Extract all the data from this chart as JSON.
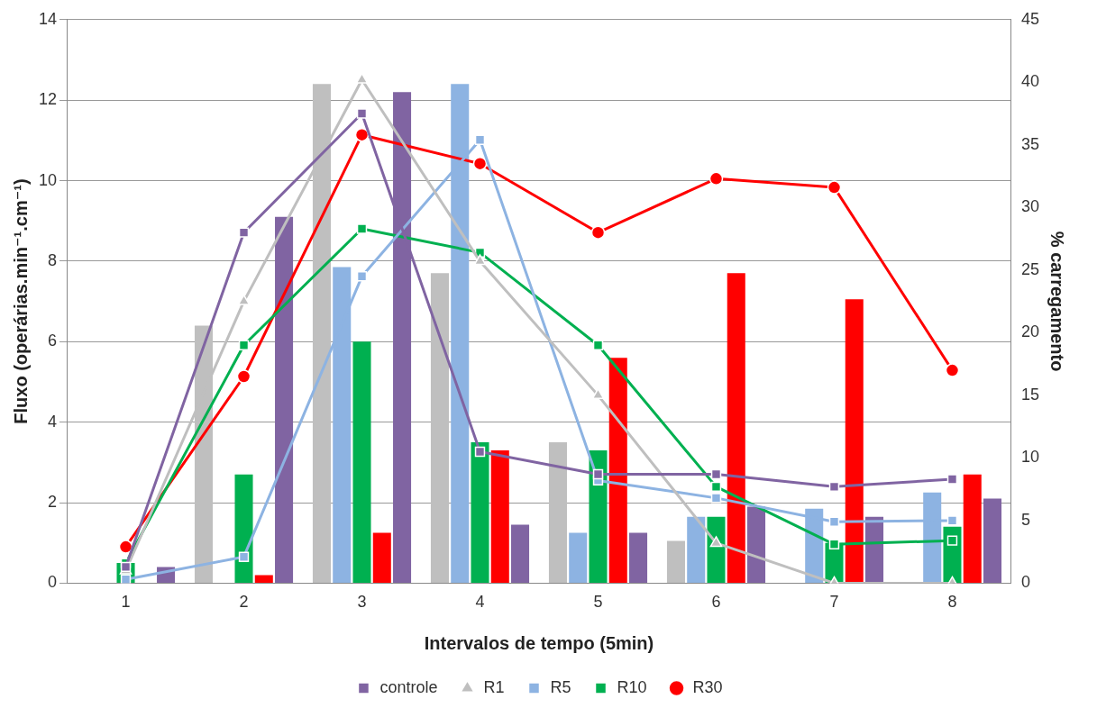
{
  "chart_data": {
    "type": "bar",
    "xlabel": "Intervalos de tempo (5min)",
    "ylabel": "Fluxo (operárias.min⁻¹.cm⁻¹)",
    "y2label": "% carregamento",
    "categories": [
      "1",
      "2",
      "3",
      "4",
      "5",
      "6",
      "7",
      "8"
    ],
    "series": [
      {
        "color": "#bfbfbf",
        "values": [
          0,
          6.4,
          12.4,
          7.7,
          3.5,
          1.05,
          0,
          0
        ]
      },
      {
        "color": "#8db3e2",
        "values": [
          0,
          0,
          7.85,
          12.4,
          1.25,
          1.65,
          1.85,
          2.25
        ]
      },
      {
        "color": "#00b050",
        "values": [
          0.5,
          2.7,
          6.0,
          3.5,
          3.3,
          1.65,
          1.0,
          1.4
        ]
      },
      {
        "color": "#ff0000",
        "values": [
          0,
          0.2,
          1.25,
          3.3,
          5.6,
          7.7,
          7.05,
          2.7
        ]
      },
      {
        "color": "#8064a2",
        "values": [
          0.4,
          9.1,
          12.2,
          1.45,
          1.25,
          1.9,
          1.65,
          2.1
        ]
      },
      {
        "type": "line",
        "axis": "y2",
        "name": "controle",
        "color": "#8064a2",
        "marker": "square",
        "values": [
          1.3,
          28,
          37.5,
          10.5,
          8.7,
          8.7,
          7.7,
          8.3
        ]
      },
      {
        "type": "line",
        "axis": "y2",
        "name": "R1",
        "color": "#bfbfbf",
        "marker": "triangle",
        "values": [
          1.0,
          22.5,
          40.2,
          25.7,
          15,
          3.2,
          0,
          0
        ]
      },
      {
        "type": "line",
        "axis": "y2",
        "name": "R5",
        "color": "#8db3e2",
        "marker": "square",
        "values": [
          0.3,
          2.1,
          24.5,
          35.4,
          8.2,
          6.8,
          4.9,
          5.0
        ]
      },
      {
        "type": "line",
        "axis": "y2",
        "name": "R10",
        "color": "#00b050",
        "marker": "square",
        "values": [
          1.6,
          19,
          28.3,
          26.4,
          19,
          7.7,
          3.1,
          3.4
        ]
      },
      {
        "type": "line",
        "axis": "y2",
        "name": "R30",
        "color": "#ff0000",
        "marker": "circle",
        "values": [
          2.9,
          16.5,
          35.8,
          33.5,
          28,
          32.3,
          31.6,
          17
        ]
      }
    ],
    "ylim": [
      0,
      14
    ],
    "yticks": [
      0,
      2,
      4,
      6,
      8,
      10,
      12,
      14
    ],
    "y2lim": [
      0,
      45
    ],
    "y2ticks": [
      0,
      5,
      10,
      15,
      20,
      25,
      30,
      35,
      40,
      45
    ],
    "grid": "y",
    "legend": "bottom"
  }
}
